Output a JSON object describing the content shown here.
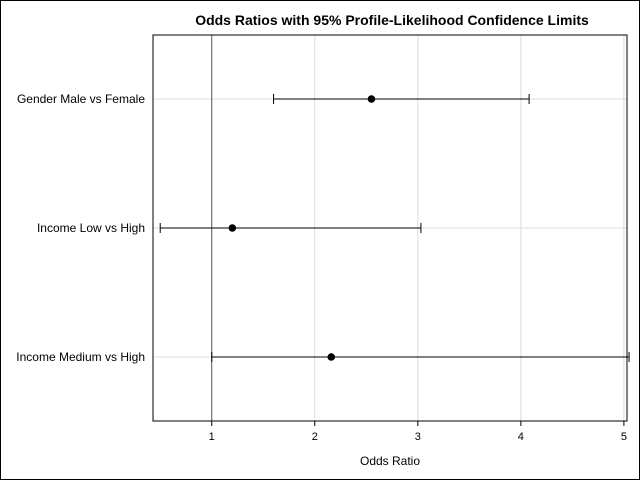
{
  "chart_data": {
    "type": "scatter",
    "title": "Odds Ratios with 95% Profile-Likelihood Confidence Limits",
    "xlabel": "Odds Ratio",
    "ylabel": "",
    "xlim": [
      0.43,
      5.03
    ],
    "xticks": [
      1,
      2,
      3,
      4,
      5
    ],
    "reference_line": 1,
    "grid": true,
    "rows": [
      {
        "label": "Gender Male vs Female",
        "estimate": 2.55,
        "lower": 1.6,
        "upper": 4.08
      },
      {
        "label": "Income Low vs High",
        "estimate": 1.2,
        "lower": 0.5,
        "upper": 3.03
      },
      {
        "label": "Income Medium vs High",
        "estimate": 2.16,
        "lower": 1.0,
        "upper": 5.05
      }
    ],
    "colors": {
      "marker": "#000000",
      "grid": "#dcdcdc",
      "reference": "#555555"
    }
  }
}
